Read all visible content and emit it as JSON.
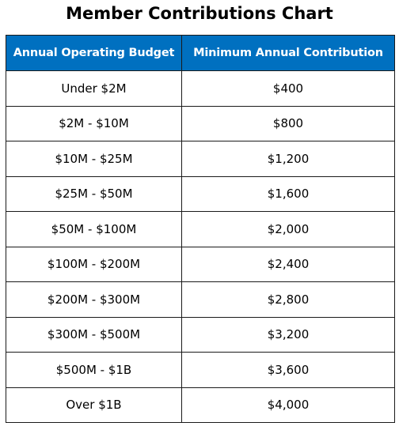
{
  "title": "Member Contributions Chart",
  "table": {
    "headers": [
      "Annual Operating Budget",
      "Minimum Annual Contribution"
    ],
    "rows": [
      [
        "Under $2M",
        "$400"
      ],
      [
        "$2M - $10M",
        "$800"
      ],
      [
        "$10M - $25M",
        "$1,200"
      ],
      [
        "$25M - $50M",
        "$1,600"
      ],
      [
        "$50M - $100M",
        "$2,000"
      ],
      [
        "$100M - $200M",
        "$2,400"
      ],
      [
        "$200M - $300M",
        "$2,800"
      ],
      [
        "$300M - $500M",
        "$3,200"
      ],
      [
        "$500M - $1B",
        "$3,600"
      ],
      [
        "Over $1B",
        "$4,000"
      ]
    ]
  },
  "colors": {
    "header_background": "#0070c0",
    "header_text": "#ffffff",
    "border": "#1a1a1a"
  }
}
